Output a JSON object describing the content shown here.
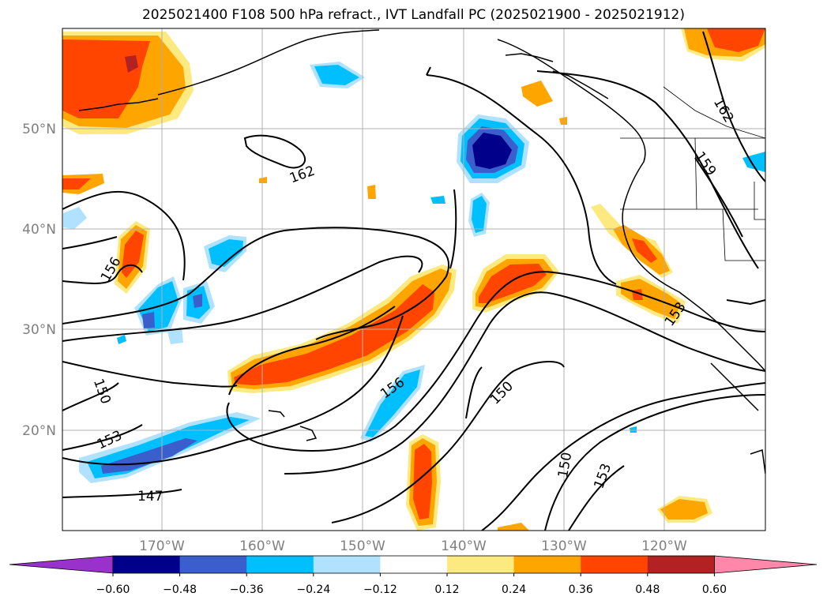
{
  "title": "2025021400 F108 500 hPa refract., IVT Landfall PC (2025021900 - 2025021912)",
  "lat_labels": [
    "50°N",
    "40°N",
    "30°N",
    "20°N"
  ],
  "lon_labels": [
    "170°W",
    "160°W",
    "150°W",
    "140°W",
    "130°W",
    "120°W"
  ],
  "contour_labels": [
    "162",
    "159",
    "156",
    "153",
    "150",
    "147",
    "162",
    "156",
    "150",
    "153",
    "150",
    "153",
    "156"
  ],
  "colorbar": {
    "ticks": [
      "−0.60",
      "−0.48",
      "−0.36",
      "−0.24",
      "−0.12",
      "0.12",
      "0.24",
      "0.36",
      "0.48",
      "0.60"
    ],
    "colors": [
      "#9932cc",
      "#00008b",
      "#3a5fcd",
      "#00bfff",
      "#b0e2ff",
      "#ffffff",
      "#fce97f",
      "#ffa500",
      "#ff4500",
      "#b22222",
      "#ff88aa"
    ]
  },
  "shading_colors": {
    "neg_light": "#b0e2ff",
    "neg_mid": "#00bfff",
    "neg_strong": "#3a5fcd",
    "neg_max": "#00008b",
    "pos_light": "#fce97f",
    "pos_mid": "#ffa500",
    "pos_strong": "#ff4500",
    "pos_max": "#b22222"
  }
}
